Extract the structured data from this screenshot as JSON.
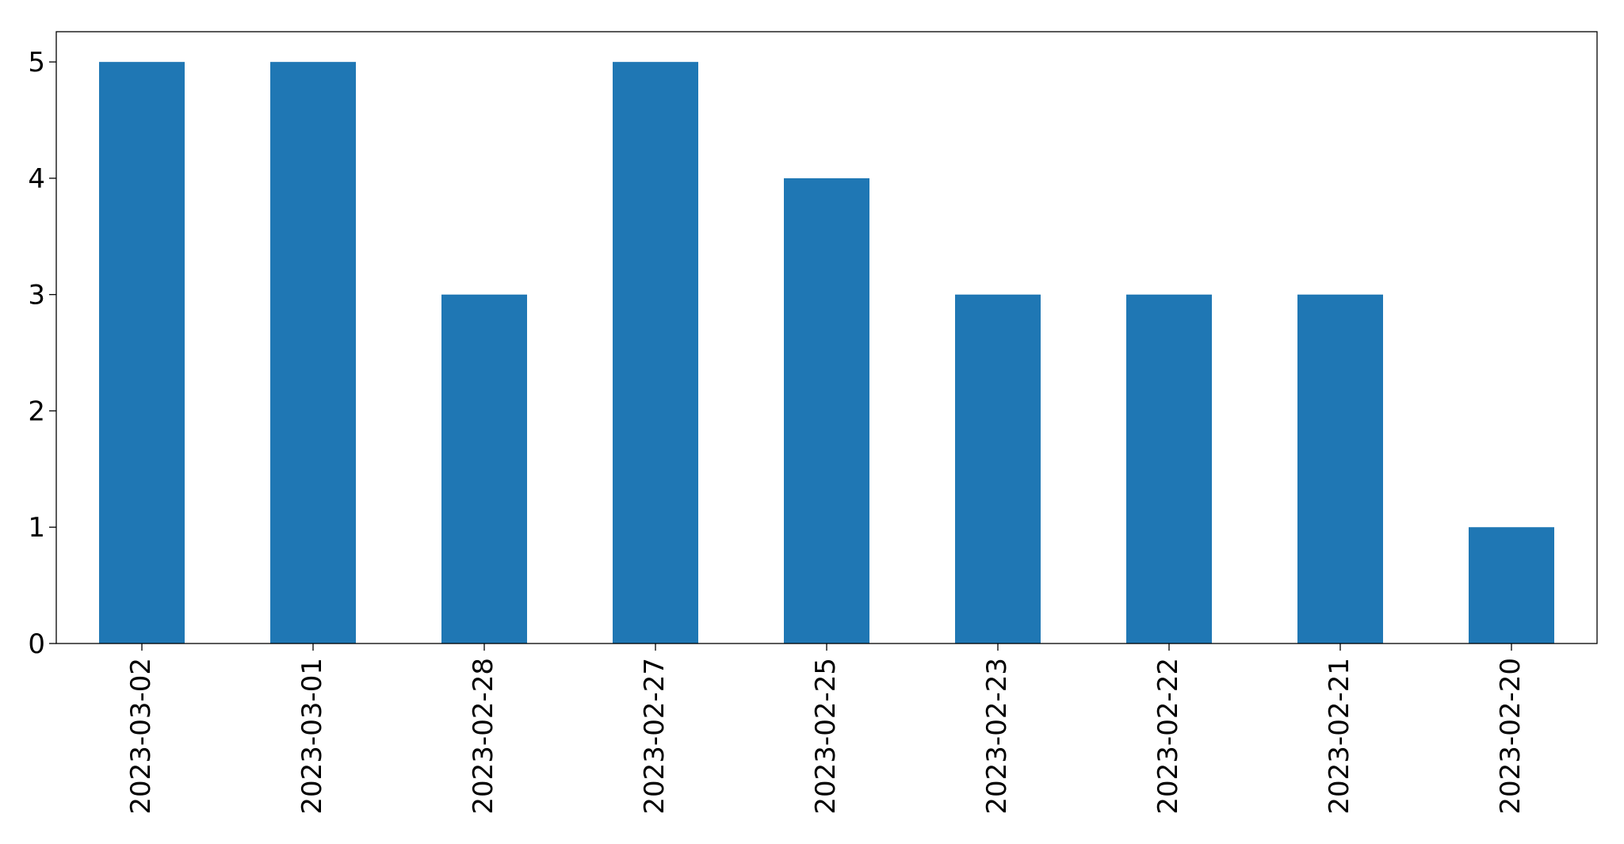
{
  "chart_data": {
    "type": "bar",
    "title": "",
    "xlabel": "",
    "ylabel": "",
    "categories": [
      "2023-03-02",
      "2023-03-01",
      "2023-02-28",
      "2023-02-27",
      "2023-02-25",
      "2023-02-23",
      "2023-02-22",
      "2023-02-21",
      "2023-02-20"
    ],
    "values": [
      5,
      5,
      3,
      5,
      4,
      3,
      3,
      3,
      1
    ],
    "ylim": [
      0,
      5.26
    ],
    "yticks": [
      0,
      1,
      2,
      3,
      4,
      5
    ],
    "grid": false,
    "legend": "none",
    "bar_color": "#1f77b4",
    "xtick_rotation": "vertical"
  }
}
